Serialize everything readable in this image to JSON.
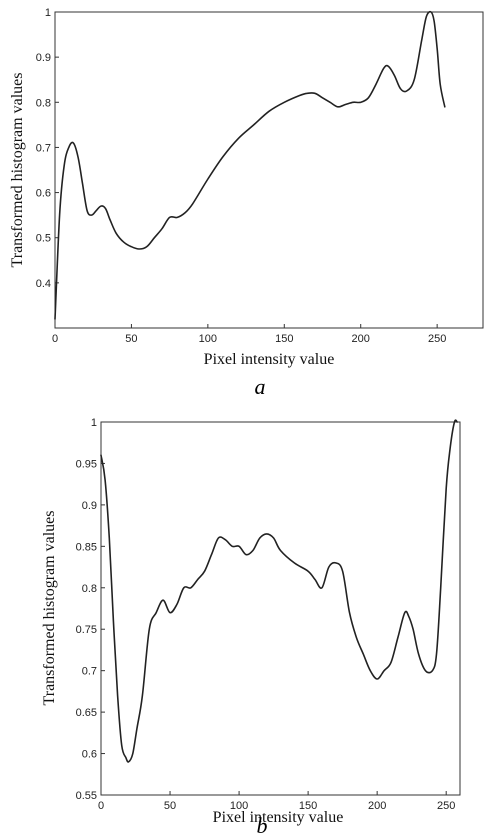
{
  "chart_data": [
    {
      "type": "line",
      "panel_label": "a",
      "xlabel": "Pixel intensity value",
      "ylabel": "Transformed histogram values",
      "xlim": [
        0,
        280
      ],
      "ylim": [
        0.3,
        1.0
      ],
      "xticks": [
        "0",
        "50",
        "100",
        "150",
        "200",
        "250"
      ],
      "xtick_values": [
        0,
        50,
        100,
        150,
        200,
        250
      ],
      "yticks": [
        "0.4",
        "0.5",
        "0.6",
        "0.7",
        "0.8",
        "0.9",
        "1"
      ],
      "ytick_values": [
        0.4,
        0.5,
        0.6,
        0.7,
        0.8,
        0.9,
        1.0
      ],
      "grid": false,
      "series": [
        {
          "x": [
            0,
            3,
            6,
            9,
            12,
            15,
            18,
            21,
            24,
            27,
            30,
            33,
            36,
            40,
            45,
            50,
            55,
            60,
            65,
            70,
            75,
            80,
            85,
            90,
            100,
            110,
            120,
            130,
            140,
            150,
            160,
            165,
            170,
            175,
            180,
            185,
            190,
            195,
            200,
            205,
            210,
            215,
            218,
            222,
            226,
            230,
            235,
            240,
            243,
            246,
            248,
            250,
            252,
            255
          ],
          "y": [
            0.32,
            0.55,
            0.66,
            0.7,
            0.71,
            0.68,
            0.62,
            0.56,
            0.55,
            0.56,
            0.57,
            0.565,
            0.54,
            0.51,
            0.49,
            0.48,
            0.475,
            0.48,
            0.5,
            0.52,
            0.545,
            0.545,
            0.555,
            0.575,
            0.63,
            0.68,
            0.72,
            0.75,
            0.78,
            0.8,
            0.815,
            0.82,
            0.82,
            0.81,
            0.8,
            0.79,
            0.795,
            0.8,
            0.8,
            0.81,
            0.84,
            0.875,
            0.88,
            0.86,
            0.83,
            0.825,
            0.85,
            0.94,
            0.99,
            1.0,
            0.98,
            0.92,
            0.84,
            0.79
          ]
        }
      ]
    },
    {
      "type": "line",
      "panel_label": "b",
      "xlabel": "Pixel intensity value",
      "ylabel": "Transformed histogram values",
      "xlim": [
        0,
        260
      ],
      "ylim": [
        0.55,
        1.0
      ],
      "xticks": [
        "0",
        "50",
        "100",
        "150",
        "200",
        "250"
      ],
      "xtick_values": [
        0,
        50,
        100,
        150,
        200,
        250
      ],
      "yticks": [
        "0.55",
        "0.6",
        "0.65",
        "0.7",
        "0.75",
        "0.8",
        "0.85",
        "0.9",
        "0.95",
        "1"
      ],
      "ytick_values": [
        0.55,
        0.6,
        0.65,
        0.7,
        0.75,
        0.8,
        0.85,
        0.9,
        0.95,
        1.0
      ],
      "grid": false,
      "series": [
        {
          "x": [
            0,
            3,
            6,
            9,
            12,
            15,
            18,
            20,
            23,
            26,
            30,
            35,
            40,
            45,
            50,
            55,
            60,
            65,
            70,
            75,
            80,
            85,
            90,
            95,
            100,
            105,
            110,
            115,
            120,
            125,
            130,
            140,
            150,
            155,
            160,
            165,
            170,
            175,
            180,
            185,
            190,
            195,
            200,
            205,
            210,
            215,
            220,
            223,
            226,
            230,
            235,
            240,
            243,
            246,
            250,
            253,
            256,
            258
          ],
          "y": [
            0.96,
            0.93,
            0.86,
            0.76,
            0.67,
            0.61,
            0.595,
            0.59,
            0.6,
            0.63,
            0.67,
            0.75,
            0.77,
            0.785,
            0.77,
            0.78,
            0.8,
            0.8,
            0.81,
            0.82,
            0.84,
            0.86,
            0.858,
            0.85,
            0.85,
            0.84,
            0.845,
            0.86,
            0.865,
            0.86,
            0.845,
            0.83,
            0.82,
            0.81,
            0.8,
            0.825,
            0.83,
            0.82,
            0.77,
            0.74,
            0.72,
            0.7,
            0.69,
            0.7,
            0.71,
            0.74,
            0.77,
            0.765,
            0.75,
            0.72,
            0.7,
            0.7,
            0.72,
            0.8,
            0.92,
            0.97,
            1.0,
            1.0
          ]
        }
      ]
    }
  ]
}
